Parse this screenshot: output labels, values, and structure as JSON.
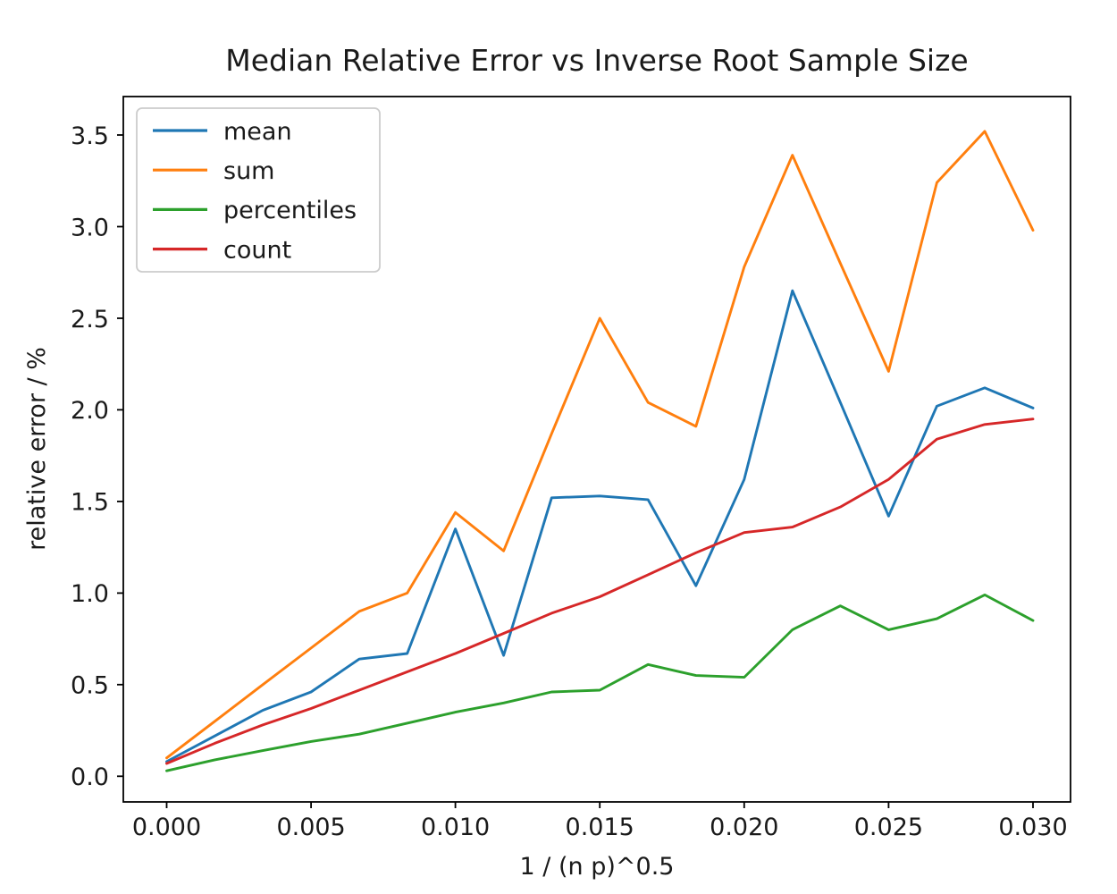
{
  "chart_data": {
    "type": "line",
    "title": "Median Relative Error vs Inverse Root Sample Size",
    "xlabel": "1 / (n p)^0.5",
    "ylabel": "relative error / %",
    "grid": false,
    "legend_position": "upper left",
    "xlim": [
      -0.0015,
      0.0313
    ],
    "ylim": [
      -0.14,
      3.71
    ],
    "x_tick_values": [
      0.0,
      0.005,
      0.01,
      0.015,
      0.02,
      0.025,
      0.03
    ],
    "x_tick_labels": [
      "0.000",
      "0.005",
      "0.010",
      "0.015",
      "0.020",
      "0.025",
      "0.030"
    ],
    "y_tick_values": [
      0.0,
      0.5,
      1.0,
      1.5,
      2.0,
      2.5,
      3.0,
      3.5
    ],
    "y_tick_labels": [
      "0.0",
      "0.5",
      "1.0",
      "1.5",
      "2.0",
      "2.5",
      "3.0",
      "3.5"
    ],
    "x": [
      0.0,
      0.00167,
      0.00333,
      0.005,
      0.00667,
      0.00833,
      0.01,
      0.01167,
      0.01333,
      0.015,
      0.01667,
      0.01833,
      0.02,
      0.02167,
      0.02333,
      0.025,
      0.02667,
      0.02833,
      0.03
    ],
    "series": [
      {
        "name": "mean",
        "color": "#1f77b4",
        "values": [
          0.08,
          0.22,
          0.36,
          0.46,
          0.64,
          0.67,
          1.35,
          0.66,
          1.52,
          1.53,
          1.51,
          1.04,
          1.62,
          2.65,
          2.04,
          1.42,
          2.02,
          2.12,
          2.01
        ]
      },
      {
        "name": "sum",
        "color": "#ff7f0e",
        "values": [
          0.1,
          0.3,
          0.5,
          0.7,
          0.9,
          1.0,
          1.44,
          1.23,
          1.87,
          2.5,
          2.04,
          1.91,
          2.78,
          3.39,
          2.8,
          2.21,
          3.24,
          3.52,
          2.98
        ]
      },
      {
        "name": "percentiles",
        "color": "#2ca02c",
        "values": [
          0.03,
          0.09,
          0.14,
          0.19,
          0.23,
          0.29,
          0.35,
          0.4,
          0.46,
          0.47,
          0.61,
          0.55,
          0.54,
          0.8,
          0.93,
          0.8,
          0.86,
          0.99,
          0.85
        ]
      },
      {
        "name": "count",
        "color": "#d62728",
        "values": [
          0.07,
          0.18,
          0.28,
          0.37,
          0.47,
          0.57,
          0.67,
          0.78,
          0.89,
          0.98,
          1.1,
          1.22,
          1.33,
          1.36,
          1.47,
          1.62,
          1.84,
          1.92,
          1.95
        ]
      }
    ]
  },
  "colors": {
    "background": "#ffffff",
    "text": "#1a1a1a",
    "spine": "#000000",
    "legend_border": "#cccccc"
  }
}
